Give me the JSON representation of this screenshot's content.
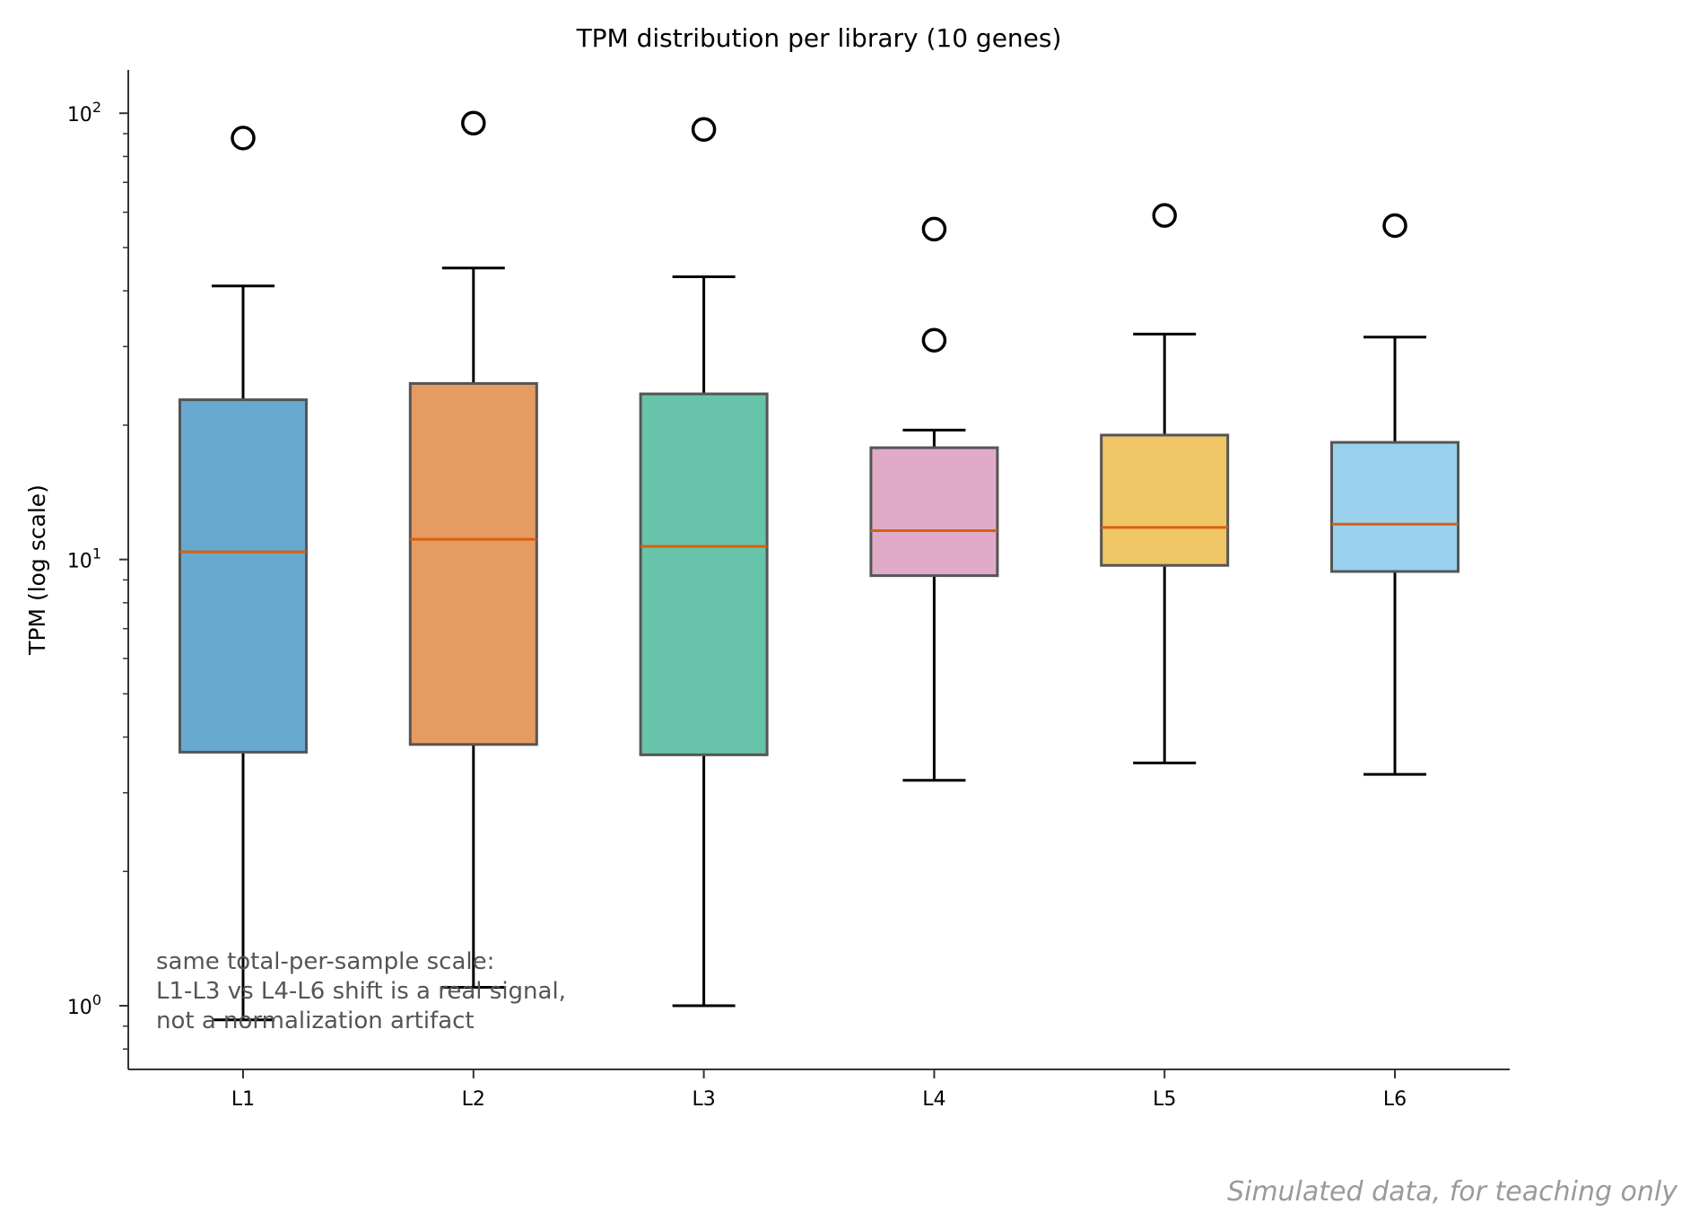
{
  "chart_data": {
    "type": "boxplot",
    "title": "TPM distribution per library (10 genes)",
    "xlabel": "",
    "ylabel": "TPM (log scale)",
    "yscale": "log",
    "ylim": [
      0.72,
      125
    ],
    "yticks": [
      {
        "value": 1,
        "base": "10",
        "exp": "0"
      },
      {
        "value": 10,
        "base": "10",
        "exp": "1"
      },
      {
        "value": 100,
        "base": "10",
        "exp": "2"
      }
    ],
    "categories": [
      "L1",
      "L2",
      "L3",
      "L4",
      "L5",
      "L6"
    ],
    "boxes": [
      {
        "name": "L1",
        "color": "#67a9cf",
        "whisker_low": 0.93,
        "q1": 3.7,
        "median": 10.4,
        "q3": 22.8,
        "whisker_high": 41,
        "outliers": [
          88
        ]
      },
      {
        "name": "L2",
        "color": "#e69b63",
        "whisker_low": 1.1,
        "q1": 3.85,
        "median": 11.1,
        "q3": 24.8,
        "whisker_high": 45,
        "outliers": [
          95
        ]
      },
      {
        "name": "L3",
        "color": "#67c4aa",
        "whisker_low": 1.0,
        "q1": 3.65,
        "median": 10.7,
        "q3": 23.5,
        "whisker_high": 43,
        "outliers": [
          92
        ]
      },
      {
        "name": "L4",
        "color": "#e0abc9",
        "whisker_low": 3.2,
        "q1": 9.2,
        "median": 11.6,
        "q3": 17.8,
        "whisker_high": 19.5,
        "outliers": [
          31,
          55
        ]
      },
      {
        "name": "L5",
        "color": "#f0c566",
        "whisker_low": 3.5,
        "q1": 9.7,
        "median": 11.8,
        "q3": 19.0,
        "whisker_high": 32,
        "outliers": [
          59
        ]
      },
      {
        "name": "L6",
        "color": "#99d1ef",
        "whisker_low": 3.3,
        "q1": 9.4,
        "median": 12.0,
        "q3": 18.3,
        "whisker_high": 31.5,
        "outliers": [
          56
        ]
      }
    ],
    "style": {
      "median_color": "#d95f0e",
      "box_edge_color": "#555555",
      "whisker_color": "#000000"
    },
    "annotation": [
      "same total-per-sample scale:",
      "L1-L3 vs L4-L6 shift is a real signal,",
      "not a normalization artifact"
    ],
    "footer": "Simulated data, for teaching only"
  }
}
